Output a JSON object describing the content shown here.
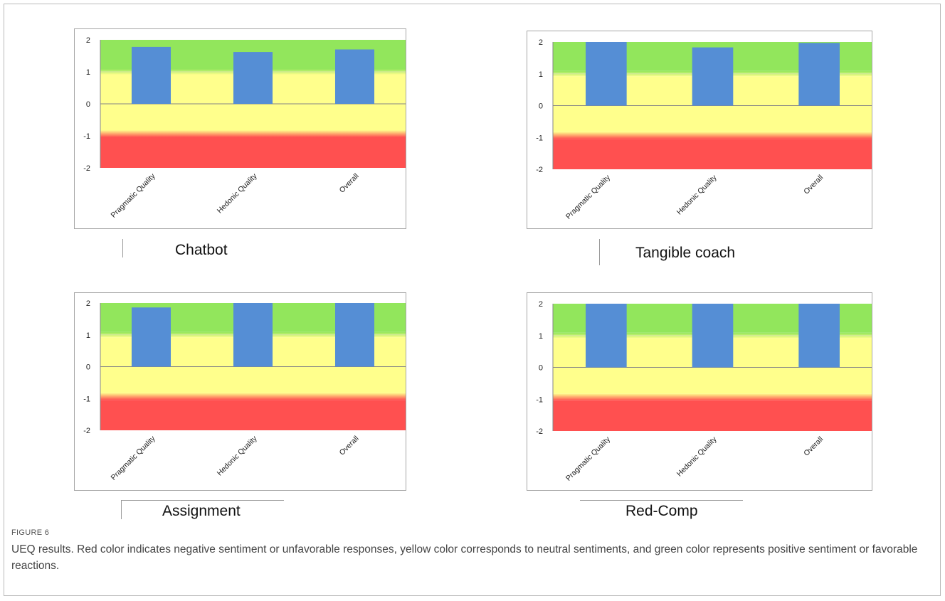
{
  "figure": {
    "label": "FIGURE 6",
    "caption": "UEQ results. Red color indicates negative sentiment or unfavorable responses, yellow color corresponds to neutral sentiments, and green color represents positive sentiment or favorable reactions."
  },
  "colors": {
    "bar": "#558ed5",
    "positive": "#92e65c",
    "neutral": "#ffff8c",
    "negative": "#ff5050",
    "axis": "#868686"
  },
  "chart_data": [
    {
      "type": "bar",
      "title": "Chatbot",
      "categories": [
        "Pragmatic Quality",
        "Hedonic Quality",
        "Overall"
      ],
      "values": [
        1.78,
        1.62,
        1.7
      ],
      "ylim": [
        -2,
        2
      ],
      "yticks": [
        2,
        1,
        0,
        -1,
        -2
      ],
      "bands": [
        {
          "from": 1,
          "to": 2,
          "label": "positive"
        },
        {
          "from": -1,
          "to": 1,
          "label": "neutral"
        },
        {
          "from": -2,
          "to": -1,
          "label": "negative"
        }
      ],
      "grid": false,
      "legend": "none"
    },
    {
      "type": "bar",
      "title": "Tangible coach",
      "categories": [
        "Pragmatic Quality",
        "Hedonic Quality",
        "Overall"
      ],
      "values": [
        2.0,
        1.83,
        1.97
      ],
      "ylim": [
        -2,
        2
      ],
      "yticks": [
        2,
        1,
        0,
        -1,
        -2
      ],
      "bands": [
        {
          "from": 1,
          "to": 2,
          "label": "positive"
        },
        {
          "from": -1,
          "to": 1,
          "label": "neutral"
        },
        {
          "from": -2,
          "to": -1,
          "label": "negative"
        }
      ],
      "grid": false,
      "legend": "none"
    },
    {
      "type": "bar",
      "title": "Assignment",
      "categories": [
        "Pragmatic Quality",
        "Hedonic Quality",
        "Overall"
      ],
      "values": [
        1.86,
        2.0,
        2.0
      ],
      "ylim": [
        -2,
        2
      ],
      "yticks": [
        2,
        1,
        0,
        -1,
        -2
      ],
      "bands": [
        {
          "from": 1,
          "to": 2,
          "label": "positive"
        },
        {
          "from": -1,
          "to": 1,
          "label": "neutral"
        },
        {
          "from": -2,
          "to": -1,
          "label": "negative"
        }
      ],
      "grid": false,
      "legend": "none"
    },
    {
      "type": "bar",
      "title": "Red-Comp",
      "categories": [
        "Pragmatic Quality",
        "Hedonic Quality",
        "Overall"
      ],
      "values": [
        2.0,
        2.0,
        2.0
      ],
      "ylim": [
        -2,
        2
      ],
      "yticks": [
        2,
        1,
        0,
        -1,
        -2
      ],
      "bands": [
        {
          "from": 1,
          "to": 2,
          "label": "positive"
        },
        {
          "from": -1,
          "to": 1,
          "label": "neutral"
        },
        {
          "from": -2,
          "to": -1,
          "label": "negative"
        }
      ],
      "grid": false,
      "legend": "none"
    }
  ]
}
